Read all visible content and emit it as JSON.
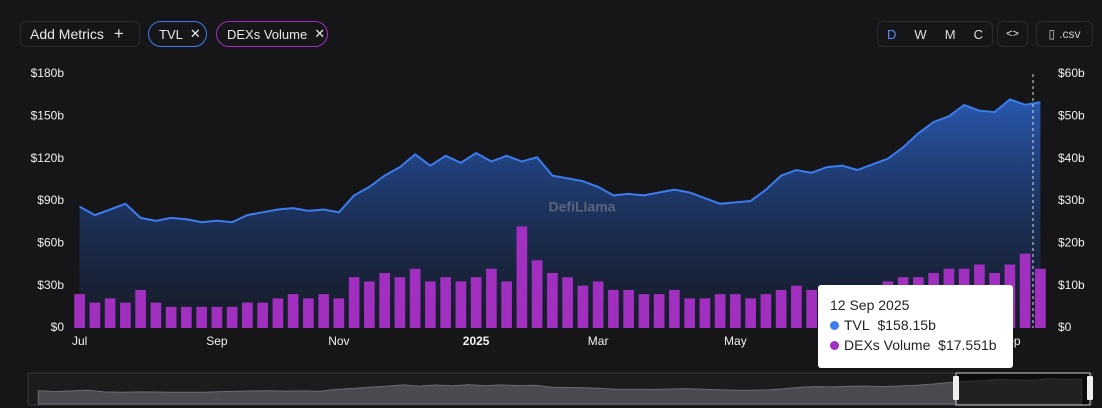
{
  "toolbar": {
    "add_metrics": "Add Metrics",
    "periods": [
      "D",
      "W",
      "M",
      "C"
    ],
    "embed": "<>",
    "csv": ".csv"
  },
  "chart_data": {
    "type": "area-bar",
    "watermark": "DefiLlama",
    "categories": [
      "Jul",
      null,
      null,
      null,
      null,
      null,
      null,
      null,
      null,
      "Sep",
      null,
      null,
      null,
      null,
      null,
      null,
      null,
      "Nov",
      null,
      null,
      null,
      null,
      null,
      null,
      null,
      null,
      "2025",
      null,
      null,
      null,
      null,
      null,
      null,
      null,
      "Mar",
      null,
      null,
      null,
      null,
      null,
      null,
      null,
      null,
      "May",
      null,
      null,
      null,
      null,
      null,
      null,
      null,
      null,
      null,
      null,
      null,
      null,
      null,
      null,
      null,
      null,
      null,
      "Sep",
      null,
      null
    ],
    "series": [
      {
        "name": "TVL",
        "color": "#3b7cf0",
        "axis": "y",
        "values": [
          86,
          80,
          84,
          88,
          78,
          76,
          78,
          77,
          75,
          76,
          75,
          80,
          82,
          84,
          85,
          83,
          84,
          82,
          94,
          100,
          108,
          114,
          123,
          115,
          122,
          117,
          124,
          118,
          122,
          118,
          121,
          108,
          106,
          104,
          100,
          94,
          95,
          94,
          96,
          98,
          96,
          92,
          88,
          89,
          90,
          98,
          108,
          112,
          110,
          114,
          115,
          112,
          116,
          120,
          128,
          138,
          146,
          150,
          158,
          154,
          153,
          162,
          158.15,
          160
        ]
      },
      {
        "name": "DEXs Volume",
        "color": "#a12fbf",
        "axis": "y2",
        "values": [
          8,
          6,
          7,
          6,
          9,
          6,
          5,
          5,
          5,
          5,
          5,
          6,
          6,
          7,
          8,
          7,
          8,
          7,
          12,
          11,
          13,
          12,
          14,
          11,
          12,
          11,
          12,
          14,
          11,
          24,
          16,
          13,
          12,
          10,
          11,
          9,
          9,
          8,
          8,
          9,
          7,
          7,
          8,
          8,
          7,
          8,
          9,
          10,
          9,
          9,
          10,
          9,
          10,
          11,
          12,
          12,
          13,
          14,
          14,
          15,
          13,
          15,
          17.551,
          14
        ]
      }
    ],
    "ylim": [
      0,
      180
    ],
    "yticks": [
      {
        "value": 0,
        "label": "$0"
      },
      {
        "value": 30,
        "label": "$30b"
      },
      {
        "value": 60,
        "label": "$60b"
      },
      {
        "value": 90,
        "label": "$90b"
      },
      {
        "value": 120,
        "label": "$120b"
      },
      {
        "value": 150,
        "label": "$150b"
      },
      {
        "value": 180,
        "label": "$180b"
      }
    ],
    "y2lim": [
      0,
      60
    ],
    "y2ticks": [
      {
        "value": 0,
        "label": "$0"
      },
      {
        "value": 10,
        "label": "$10b"
      },
      {
        "value": 20,
        "label": "$20b"
      },
      {
        "value": 30,
        "label": "$30b"
      },
      {
        "value": 40,
        "label": "$40b"
      },
      {
        "value": 50,
        "label": "$50b"
      },
      {
        "value": 60,
        "label": "$60b"
      }
    ],
    "tooltip": {
      "date": "12 Sep 2025",
      "value_labels": [
        "$158.15b",
        "$17.551b"
      ]
    }
  }
}
